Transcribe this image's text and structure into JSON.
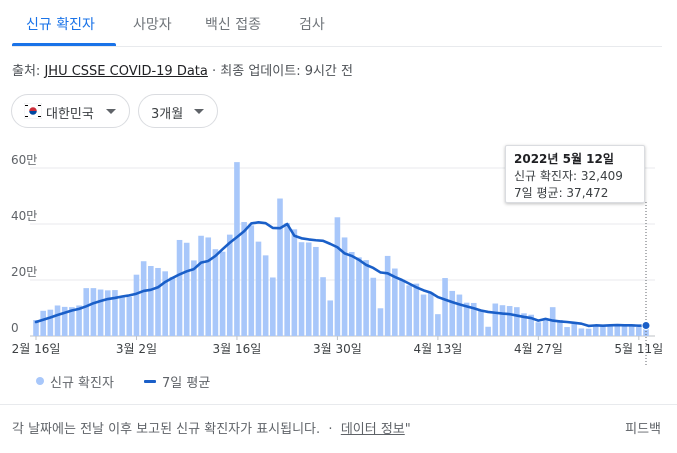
{
  "tabs": [
    {
      "label": "신규 확진자"
    },
    {
      "label": "사망자"
    },
    {
      "label": "백신 접종"
    },
    {
      "label": "검사"
    }
  ],
  "source": {
    "prefix": "출처:",
    "link": "JHU CSSE COVID-19 Data",
    "separator": "·",
    "update": "최종 업데이트: 9시간 전"
  },
  "filters": {
    "country": "대한민국",
    "period": "3개월"
  },
  "tooltip": {
    "date": "2022년 5월 12일",
    "cases": "신규 확진자: 32,409",
    "avg": "7일 평균: 37,472"
  },
  "legend": {
    "bars": "신규 확진자",
    "line": "7일 평균"
  },
  "footer": {
    "text": "각 날짜에는 전날 이후 보고된 신규 확진자가 표시됩니다.",
    "sep": "·",
    "link": "데이터 정보",
    "tail": "\"",
    "feedback": "피드백"
  },
  "colors": {
    "bar": "#a8c7fa",
    "line": "#1a5fc8",
    "accent": "#1a73e8"
  },
  "chart_data": {
    "type": "bar",
    "title": "",
    "xlabel": "",
    "ylabel": "",
    "ylim": [
      0,
      60
    ],
    "y_unit_suffix": "만",
    "yticks": [
      {
        "value": 0,
        "label": "0"
      },
      {
        "value": 20,
        "label": "20만"
      },
      {
        "value": 40,
        "label": "40만"
      },
      {
        "value": 60,
        "label": "60만"
      }
    ],
    "xticks": [
      {
        "index": 0,
        "label": "2월 16일"
      },
      {
        "index": 14,
        "label": "3월 2일"
      },
      {
        "index": 28,
        "label": "3월 16일"
      },
      {
        "index": 42,
        "label": "3월 30일"
      },
      {
        "index": 56,
        "label": "4월 13일"
      },
      {
        "index": 70,
        "label": "4월 27일"
      },
      {
        "index": 84,
        "label": "5월 11일"
      }
    ],
    "grid": true,
    "legend_position": "bottom-left",
    "series": [
      {
        "name": "신규 확진자",
        "type": "bar",
        "values": [
          5.7,
          9.0,
          9.4,
          10.9,
          10.4,
          10.3,
          10.9,
          17.1,
          17.1,
          16.6,
          16.3,
          16.4,
          13.9,
          14.0,
          21.9,
          26.7,
          25.0,
          24.3,
          23.1,
          21.1,
          34.3,
          33.3,
          27.0,
          35.8,
          35.2,
          31.0,
          30.1,
          36.2,
          62.1,
          40.7,
          39.5,
          33.7,
          28.8,
          20.9,
          49.1,
          40.3,
          38.1,
          33.5,
          33.4,
          31.8,
          21.0,
          12.7,
          42.4,
          35.2,
          30.0,
          28.1,
          27.1,
          20.8,
          9.9,
          28.6,
          24.1,
          20.2,
          18.1,
          18.7,
          14.8,
          15.6,
          7.8,
          20.7,
          16.1,
          14.8,
          11.9,
          11.8,
          9.0,
          3.3,
          11.6,
          11.0,
          10.7,
          10.3,
          8.1,
          7.6,
          4.9,
          6.2,
          10.3,
          5.7,
          3.2,
          4.5,
          2.7,
          2.6,
          3.4,
          4.0,
          3.7,
          4.2,
          3.8,
          3.6,
          3.2,
          3.2
        ],
        "color": "#a8c7fa"
      },
      {
        "name": "7일 평균",
        "type": "line",
        "values": [
          5.0,
          5.8,
          6.6,
          7.5,
          8.3,
          9.1,
          9.7,
          10.6,
          11.7,
          12.5,
          13.2,
          13.6,
          14.1,
          14.5,
          15.1,
          16.1,
          16.5,
          17.4,
          19.3,
          20.7,
          22.0,
          23.1,
          23.9,
          26.2,
          26.8,
          28.6,
          31.0,
          33.3,
          35.3,
          37.4,
          40.2,
          40.6,
          40.3,
          38.6,
          38.5,
          40.0,
          35.8,
          34.9,
          34.5,
          34.2,
          34.0,
          32.9,
          31.7,
          29.5,
          28.6,
          27.2,
          25.4,
          24.3,
          22.7,
          22.4,
          21.1,
          20.0,
          18.7,
          17.4,
          16.3,
          15.5,
          13.9,
          13.0,
          12.1,
          11.3,
          10.6,
          9.9,
          9.1,
          8.6,
          8.3,
          8.0,
          7.8,
          7.3,
          6.8,
          6.4,
          5.5,
          6.1,
          5.5,
          5.2,
          5.0,
          4.7,
          4.4,
          3.6,
          3.8,
          3.7,
          3.8,
          3.9,
          3.8,
          3.8,
          3.7,
          3.75
        ],
        "color": "#1a5fc8"
      }
    ],
    "highlight": {
      "index": 85,
      "date": "2022년 5월 12일",
      "cases": 32409,
      "avg7": 37472
    }
  }
}
